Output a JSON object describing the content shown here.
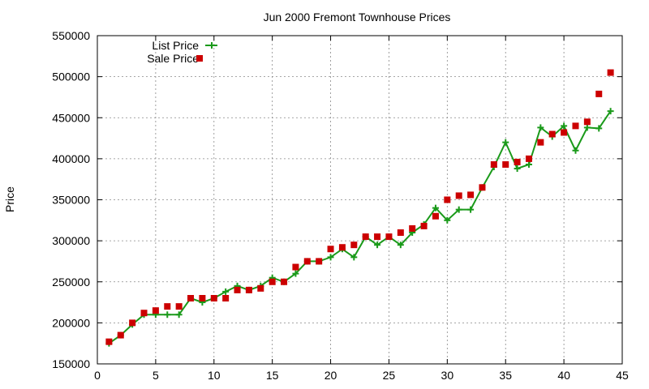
{
  "chart_data": {
    "type": "line",
    "title": "Jun 2000 Fremont Townhouse Prices",
    "xlabel": "",
    "ylabel": "Price",
    "xlim": [
      0,
      45
    ],
    "ylim": [
      150000,
      550000
    ],
    "xticks": [
      0,
      5,
      10,
      15,
      20,
      25,
      30,
      35,
      40,
      45
    ],
    "yticks": [
      150000,
      200000,
      250000,
      300000,
      350000,
      400000,
      450000,
      500000,
      550000
    ],
    "grid": true,
    "legend_position": "top-left",
    "series": [
      {
        "name": "List Price",
        "style": "line-points",
        "marker": "plus",
        "color": "#1a9a1a",
        "x": [
          1,
          2,
          3,
          4,
          5,
          6,
          7,
          8,
          9,
          10,
          11,
          12,
          13,
          14,
          15,
          16,
          17,
          18,
          19,
          20,
          21,
          22,
          23,
          24,
          25,
          26,
          27,
          28,
          29,
          30,
          31,
          32,
          33,
          34,
          35,
          36,
          37,
          38,
          39,
          40,
          41,
          42,
          43,
          44
        ],
        "y": [
          175000,
          185000,
          198000,
          210000,
          210000,
          210000,
          210000,
          230000,
          225000,
          230000,
          238000,
          245000,
          240000,
          245000,
          255000,
          250000,
          260000,
          275000,
          275000,
          280000,
          290000,
          280000,
          305000,
          295000,
          305000,
          295000,
          310000,
          320000,
          340000,
          325000,
          338000,
          338000,
          365000,
          390000,
          420000,
          388000,
          393000,
          438000,
          427000,
          440000,
          410000,
          438000,
          437000,
          458000
        ]
      },
      {
        "name": "Sale Price",
        "style": "points",
        "marker": "square",
        "color": "#cc0000",
        "x": [
          1,
          2,
          3,
          4,
          5,
          6,
          7,
          8,
          9,
          10,
          11,
          12,
          13,
          14,
          15,
          16,
          17,
          18,
          19,
          20,
          21,
          22,
          23,
          24,
          25,
          26,
          27,
          28,
          29,
          30,
          31,
          32,
          33,
          34,
          35,
          36,
          37,
          38,
          39,
          40,
          41,
          42,
          43,
          44
        ],
        "y": [
          177000,
          185000,
          200000,
          212000,
          215000,
          220000,
          220000,
          230000,
          230000,
          230000,
          230000,
          240000,
          240000,
          242000,
          250000,
          250000,
          268000,
          275000,
          275000,
          290000,
          292000,
          295000,
          305000,
          305000,
          305000,
          310000,
          315000,
          318000,
          330000,
          350000,
          355000,
          356000,
          365000,
          393000,
          393000,
          396000,
          400000,
          420000,
          430000,
          432000,
          440000,
          445000,
          479000,
          505000
        ]
      }
    ]
  }
}
